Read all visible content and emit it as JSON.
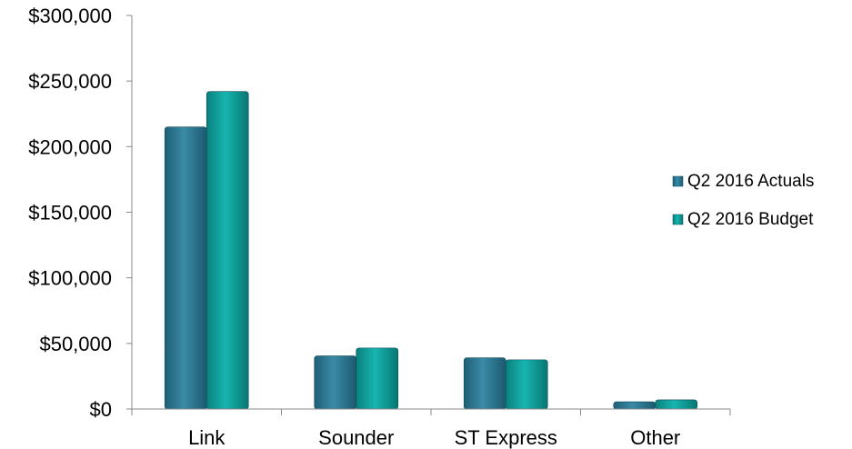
{
  "chart_data": {
    "type": "bar",
    "categories": [
      "Link",
      "Sounder",
      "ST Express",
      "Other"
    ],
    "series": [
      {
        "name": "Q2 2016 Actuals",
        "values": [
          215000,
          40500,
          39000,
          5500
        ],
        "color": "#2e7b96"
      },
      {
        "name": "Q2 2016 Budget",
        "values": [
          242000,
          46500,
          37500,
          7000
        ],
        "color": "#0fa3a0"
      }
    ],
    "ylim": [
      0,
      300000
    ],
    "yticks": [
      "$0",
      "$50,000",
      "$100,000",
      "$150,000",
      "$200,000",
      "$250,000",
      "$300,000"
    ],
    "ytick_values": [
      0,
      50000,
      100000,
      150000,
      200000,
      250000,
      300000
    ],
    "grid": false,
    "legend_position": "right"
  }
}
